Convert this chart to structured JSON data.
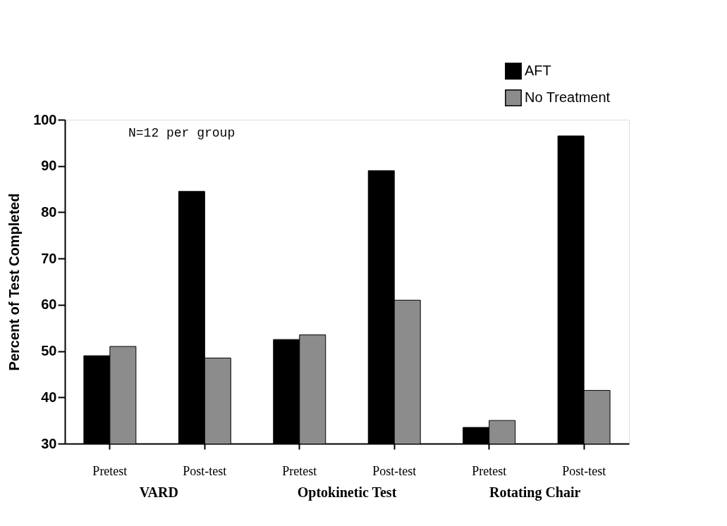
{
  "chart_data": {
    "type": "bar",
    "ylabel": "Percent  of  Test  Completed",
    "categories": [
      "Pretest",
      "Post-test",
      "Pretest",
      "Post-test",
      "Pretest",
      "Post-test"
    ],
    "series": [
      {
        "name": "AFT",
        "color": "#000000",
        "values": [
          49,
          84.5,
          52.5,
          89,
          33.5,
          96.5
        ]
      },
      {
        "name": "No Treatment",
        "color": "#8c8c8c",
        "values": [
          51,
          48.5,
          53.5,
          61,
          35,
          41.5
        ]
      }
    ],
    "ylim": [
      30,
      100
    ],
    "yticks": [
      30,
      40,
      50,
      60,
      70,
      80,
      90,
      100
    ],
    "grid": false,
    "legend": "top right",
    "annotations": [
      "N=12 per group",
      "VARD",
      "Optokinetic Test",
      "Rotating Chair"
    ]
  }
}
